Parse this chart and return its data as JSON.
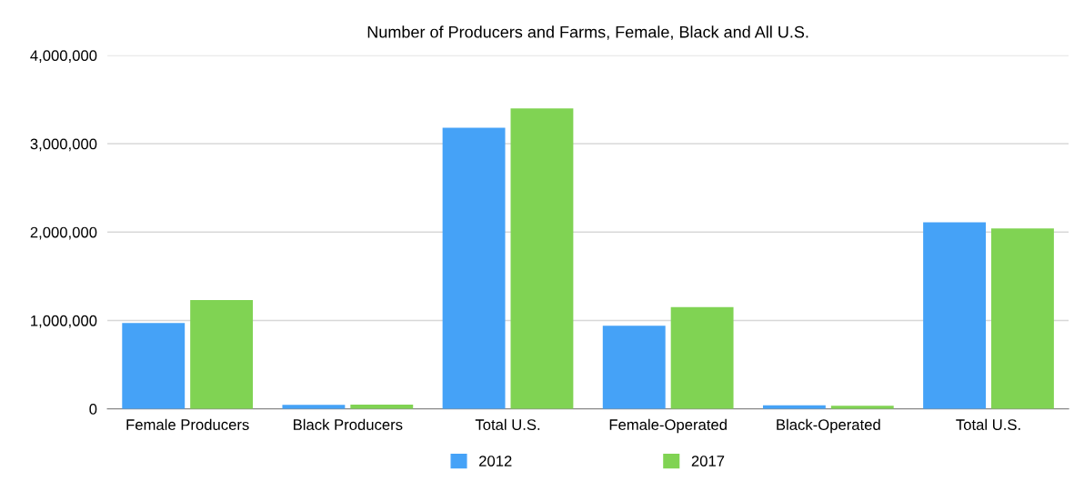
{
  "chart_data": {
    "type": "bar",
    "title": "Number of Producers and Farms, Female, Black and All U.S.",
    "categories": [
      "Female Producers",
      "Black Producers",
      "Total U.S.",
      "Female-Operated",
      "Black-Operated",
      "Total U.S."
    ],
    "series": [
      {
        "name": "2012",
        "color": "#45a2f7",
        "values": [
          970000,
          45000,
          3180000,
          940000,
          40000,
          2110000
        ]
      },
      {
        "name": "2017",
        "color": "#80d353",
        "values": [
          1230000,
          49000,
          3400000,
          1150000,
          35000,
          2040000
        ]
      }
    ],
    "ylim": [
      0,
      4000000
    ],
    "yticks": [
      {
        "value": 0,
        "label": "0"
      },
      {
        "value": 1000000,
        "label": "1,000,000"
      },
      {
        "value": 2000000,
        "label": "2,000,000"
      },
      {
        "value": 3000000,
        "label": "3,000,000"
      },
      {
        "value": 4000000,
        "label": "4,000,000"
      }
    ],
    "grid": "y",
    "legend": "bottom"
  }
}
